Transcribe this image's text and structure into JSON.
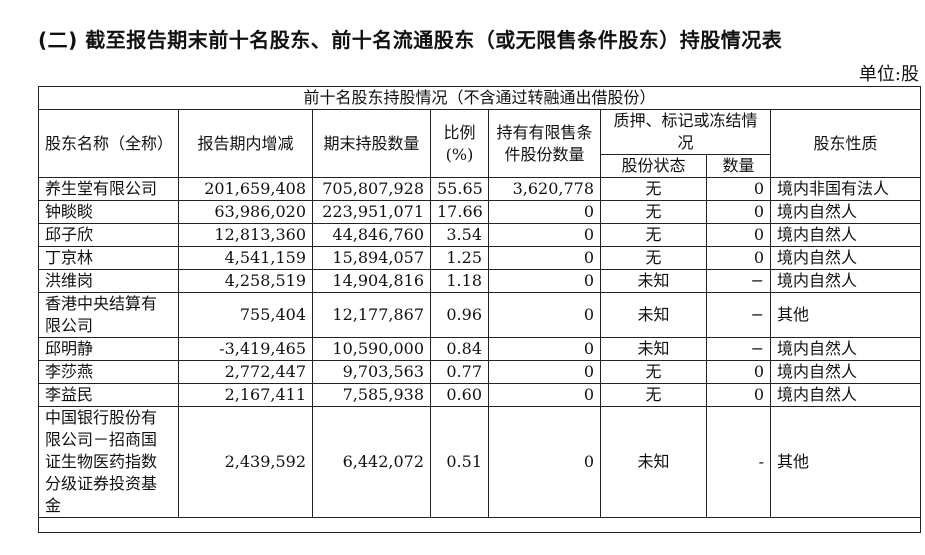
{
  "heading": "(二) 截至报告期末前十名股东、前十名流通股东（或无限售条件股东）持股情况表",
  "unit": "单位:股",
  "table": {
    "caption": "前十名股东持股情况（不含通过转融通出借股份）",
    "headers": {
      "name": "股东名称（全称）",
      "change": "报告期内增减",
      "shares": "期末持股数量",
      "ratio": "比例(%)",
      "restricted": "持有有限售条件股份数量",
      "pledge_group": "质押、标记或冻结情况",
      "pledge_status": "股份状态",
      "pledge_qty": "数量",
      "nature": "股东性质"
    },
    "rows": [
      {
        "name": "养生堂有限公司",
        "change": "201,659,408",
        "shares": "705,807,928",
        "ratio": "55.65",
        "restricted": "3,620,778",
        "status": "无",
        "qty": "0",
        "nature": "境内非国有法人"
      },
      {
        "name": "钟睒睒",
        "change": "63,986,020",
        "shares": "223,951,071",
        "ratio": "17.66",
        "restricted": "0",
        "status": "无",
        "qty": "0",
        "nature": "境内自然人"
      },
      {
        "name": "邱子欣",
        "change": "12,813,360",
        "shares": "44,846,760",
        "ratio": "3.54",
        "restricted": "0",
        "status": "无",
        "qty": "0",
        "nature": "境内自然人"
      },
      {
        "name": "丁京林",
        "change": "4,541,159",
        "shares": "15,894,057",
        "ratio": "1.25",
        "restricted": "0",
        "status": "无",
        "qty": "0",
        "nature": "境内自然人"
      },
      {
        "name": "洪维岗",
        "change": "4,258,519",
        "shares": "14,904,816",
        "ratio": "1.18",
        "restricted": "0",
        "status": "未知",
        "qty": "−",
        "nature": "境内自然人"
      },
      {
        "name": "香港中央结算有限公司",
        "change": "755,404",
        "shares": "12,177,867",
        "ratio": "0.96",
        "restricted": "0",
        "status": "未知",
        "qty": "−",
        "nature": "其他"
      },
      {
        "name": "邱明静",
        "change": "-3,419,465",
        "shares": "10,590,000",
        "ratio": "0.84",
        "restricted": "0",
        "status": "未知",
        "qty": "−",
        "nature": "境内自然人"
      },
      {
        "name": "李莎燕",
        "change": "2,772,447",
        "shares": "9,703,563",
        "ratio": "0.77",
        "restricted": "0",
        "status": "无",
        "qty": "0",
        "nature": "境内自然人"
      },
      {
        "name": "李益民",
        "change": "2,167,411",
        "shares": "7,585,938",
        "ratio": "0.60",
        "restricted": "0",
        "status": "无",
        "qty": "0",
        "nature": "境内自然人"
      },
      {
        "name": "中国银行股份有限公司－招商国证生物医药指数分级证券投资基金",
        "change": "2,439,592",
        "shares": "6,442,072",
        "ratio": "0.51",
        "restricted": "0",
        "status": "未知",
        "qty": "-",
        "nature": "其他"
      }
    ]
  }
}
